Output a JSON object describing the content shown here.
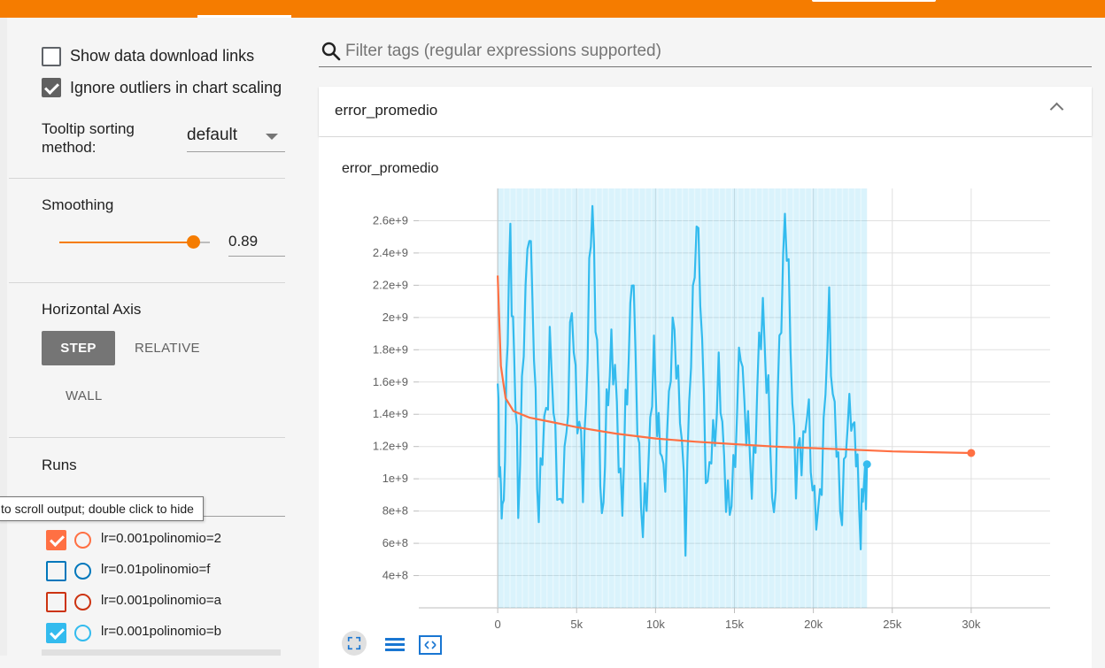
{
  "sidebar": {
    "show_download_label": "Show data download links",
    "show_download_checked": false,
    "ignore_outliers_label": "Ignore outliers in chart scaling",
    "ignore_outliers_checked": true,
    "tooltip_sort_label_line1": "Tooltip sorting",
    "tooltip_sort_label_line2": "method:",
    "tooltip_sort_value": "default",
    "smoothing_title": "Smoothing",
    "smoothing_value": "0.89",
    "smoothing_fraction": 0.89,
    "horizontal_axis_title": "Horizontal Axis",
    "axis_step": "STEP",
    "axis_relative": "RELATIVE",
    "axis_wall": "WALL",
    "runs_title": "Runs",
    "runs_tooltip": "to scroll output; double click to hide",
    "runs": [
      {
        "name": "lr=0.001polinomio=2",
        "checked": true,
        "color": "#ff7043"
      },
      {
        "name": "lr=0.01polinomio=f",
        "checked": false,
        "color": "#0077bb"
      },
      {
        "name": "lr=0.001polinomio=a",
        "checked": false,
        "color": "#cc3311"
      },
      {
        "name": "lr=0.001polinomio=b",
        "checked": true,
        "color": "#33bbee"
      }
    ]
  },
  "main": {
    "search_placeholder": "Filter tags (regular expressions supported)",
    "card_title": "error_promedio"
  },
  "colors": {
    "accent": "#f57c00",
    "series_orange": "#ff7043",
    "series_cyan": "#33bbee"
  },
  "chart_data": {
    "type": "line",
    "title": "error_promedio",
    "xlabel": "",
    "ylabel": "",
    "xlim": [
      -5000,
      35000
    ],
    "ylim": [
      200000000,
      2800000000
    ],
    "x_ticks": [
      0,
      5000,
      10000,
      15000,
      20000,
      25000,
      30000
    ],
    "x_tick_labels": [
      "0",
      "5k",
      "10k",
      "15k",
      "20k",
      "25k",
      "30k"
    ],
    "y_ticks": [
      400000000,
      600000000,
      800000000,
      1000000000,
      1200000000,
      1400000000,
      1600000000,
      1800000000,
      2000000000,
      2200000000,
      2400000000,
      2600000000
    ],
    "y_tick_labels": [
      "4e+8",
      "6e+8",
      "8e+8",
      "1e+9",
      "1.2e+9",
      "1.4e+9",
      "1.6e+9",
      "1.8e+9",
      "2e+9",
      "2.2e+9",
      "2.4e+9",
      "2.6e+9"
    ],
    "grid": true,
    "series": [
      {
        "name": "lr=0.001polinomio=2",
        "color": "#ff7043",
        "x": [
          0,
          200,
          500,
          1000,
          2000,
          3000,
          5000,
          7500,
          10000,
          12500,
          15000,
          17500,
          20000,
          22500,
          25000,
          27500,
          30000
        ],
        "y": [
          2260000000,
          1700000000,
          1500000000,
          1420000000,
          1380000000,
          1360000000,
          1320000000,
          1280000000,
          1250000000,
          1230000000,
          1215000000,
          1200000000,
          1190000000,
          1180000000,
          1170000000,
          1165000000,
          1160000000
        ]
      },
      {
        "name": "lr=0.001polinomio=b",
        "color": "#33bbee",
        "x": [
          0,
          300,
          800,
          1300,
          2000,
          2600,
          3300,
          4000,
          4700,
          5400,
          6000,
          6600,
          7200,
          7900,
          8500,
          9200,
          9900,
          10500,
          11200,
          11900,
          12600,
          13300,
          14000,
          14700,
          15400,
          16100,
          16800,
          17500,
          18200,
          18900,
          19600,
          20300,
          21000,
          21700,
          22400,
          23000,
          23400
        ],
        "y": [
          1500000000,
          650000000,
          2500000000,
          900000000,
          2700000000,
          800000000,
          1800000000,
          700000000,
          2000000000,
          950000000,
          2750000000,
          750000000,
          1900000000,
          850000000,
          2300000000,
          600000000,
          1700000000,
          950000000,
          2000000000,
          750000000,
          2700000000,
          900000000,
          1600000000,
          700000000,
          1800000000,
          950000000,
          2100000000,
          750000000,
          2700000000,
          1000000000,
          1400000000,
          650000000,
          2000000000,
          800000000,
          1500000000,
          750000000,
          1090000000
        ]
      }
    ]
  }
}
